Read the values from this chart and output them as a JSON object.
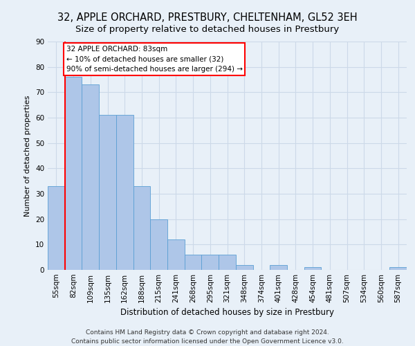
{
  "title": "32, APPLE ORCHARD, PRESTBURY, CHELTENHAM, GL52 3EH",
  "subtitle": "Size of property relative to detached houses in Prestbury",
  "xlabel": "Distribution of detached houses by size in Prestbury",
  "ylabel": "Number of detached properties",
  "bar_color": "#aec6e8",
  "bar_edge_color": "#5a9fd4",
  "categories": [
    "55sqm",
    "82sqm",
    "109sqm",
    "135sqm",
    "162sqm",
    "188sqm",
    "215sqm",
    "241sqm",
    "268sqm",
    "295sqm",
    "321sqm",
    "348sqm",
    "374sqm",
    "401sqm",
    "428sqm",
    "454sqm",
    "481sqm",
    "507sqm",
    "534sqm",
    "560sqm",
    "587sqm"
  ],
  "values": [
    33,
    76,
    73,
    61,
    61,
    33,
    20,
    12,
    6,
    6,
    6,
    2,
    0,
    2,
    0,
    1,
    0,
    0,
    0,
    0,
    1
  ],
  "annotation_text": "32 APPLE ORCHARD: 83sqm\n← 10% of detached houses are smaller (32)\n90% of semi-detached houses are larger (294) →",
  "annotation_box_color": "white",
  "annotation_box_edge_color": "red",
  "property_line_color": "red",
  "grid_color": "#ccd9e8",
  "background_color": "#e8f0f8",
  "axes_background_color": "#e8f0f8",
  "ylim": [
    0,
    90
  ],
  "yticks": [
    0,
    10,
    20,
    30,
    40,
    50,
    60,
    70,
    80,
    90
  ],
  "footer": "Contains HM Land Registry data © Crown copyright and database right 2024.\nContains public sector information licensed under the Open Government Licence v3.0.",
  "title_fontsize": 10.5,
  "subtitle_fontsize": 9.5,
  "xlabel_fontsize": 8.5,
  "ylabel_fontsize": 8,
  "footer_fontsize": 6.5,
  "tick_fontsize": 7.5,
  "annot_fontsize": 7.5
}
